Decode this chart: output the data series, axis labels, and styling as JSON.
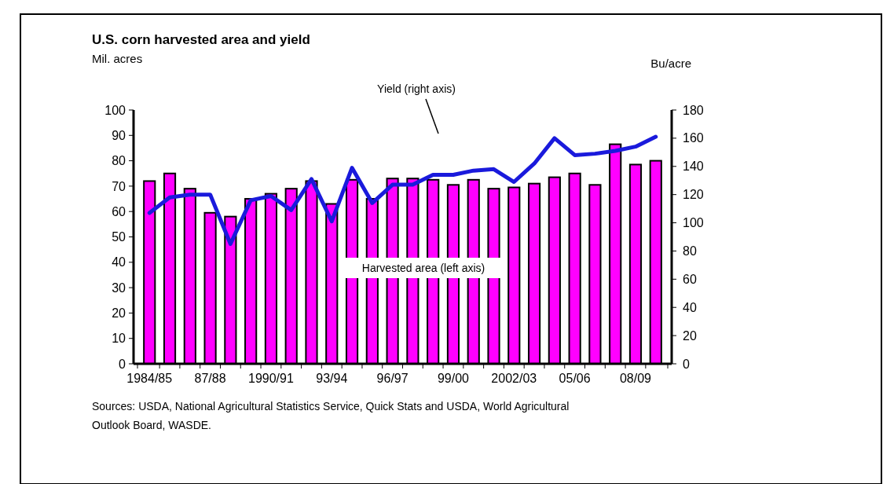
{
  "chart_data": {
    "type": "bar",
    "title": "U.S. corn harvested area and yield",
    "ylabel": "Mil. acres",
    "y2label": "Bu/acre",
    "categories": [
      "1984/85",
      null,
      null,
      "87/88",
      null,
      null,
      "1990/91",
      null,
      null,
      "93/94",
      null,
      null,
      "96/97",
      null,
      null,
      "99/00",
      null,
      null,
      "2002/03",
      null,
      null,
      "05/06",
      null,
      null,
      "08/09",
      null
    ],
    "series": [
      {
        "name": "Harvested area (left axis)",
        "color": "#ff00ff",
        "values": [
          72,
          75,
          69,
          59.5,
          58,
          65,
          67,
          69,
          72,
          63,
          72.5,
          65,
          73,
          73,
          72.5,
          70.5,
          72.5,
          69,
          69.5,
          71,
          73.5,
          75,
          70.5,
          86.5,
          78.5,
          80
        ]
      },
      {
        "name": "Yield (right axis)",
        "type": "line",
        "axis": "y2",
        "color": "#1a1adc",
        "values": [
          107,
          118,
          120,
          120,
          85,
          116,
          119,
          109,
          131,
          101,
          139,
          114,
          127,
          127,
          134,
          134,
          137,
          138,
          129,
          142,
          160,
          148,
          149,
          151,
          154,
          161
        ]
      }
    ],
    "ylim": [
      0,
      100
    ],
    "yticks": [
      0,
      10,
      20,
      30,
      40,
      50,
      60,
      70,
      80,
      90,
      100
    ],
    "y2lim": [
      0,
      180
    ],
    "y2ticks": [
      0,
      20,
      40,
      60,
      80,
      100,
      120,
      140,
      160,
      180
    ],
    "grid": false,
    "marker": "none",
    "line_style": "solid",
    "annotations": [
      "Sources: USDA, National Agricultural Statistics Service, Quick Stats and USDA, World Agricultural Outlook Board, WASDE."
    ]
  }
}
